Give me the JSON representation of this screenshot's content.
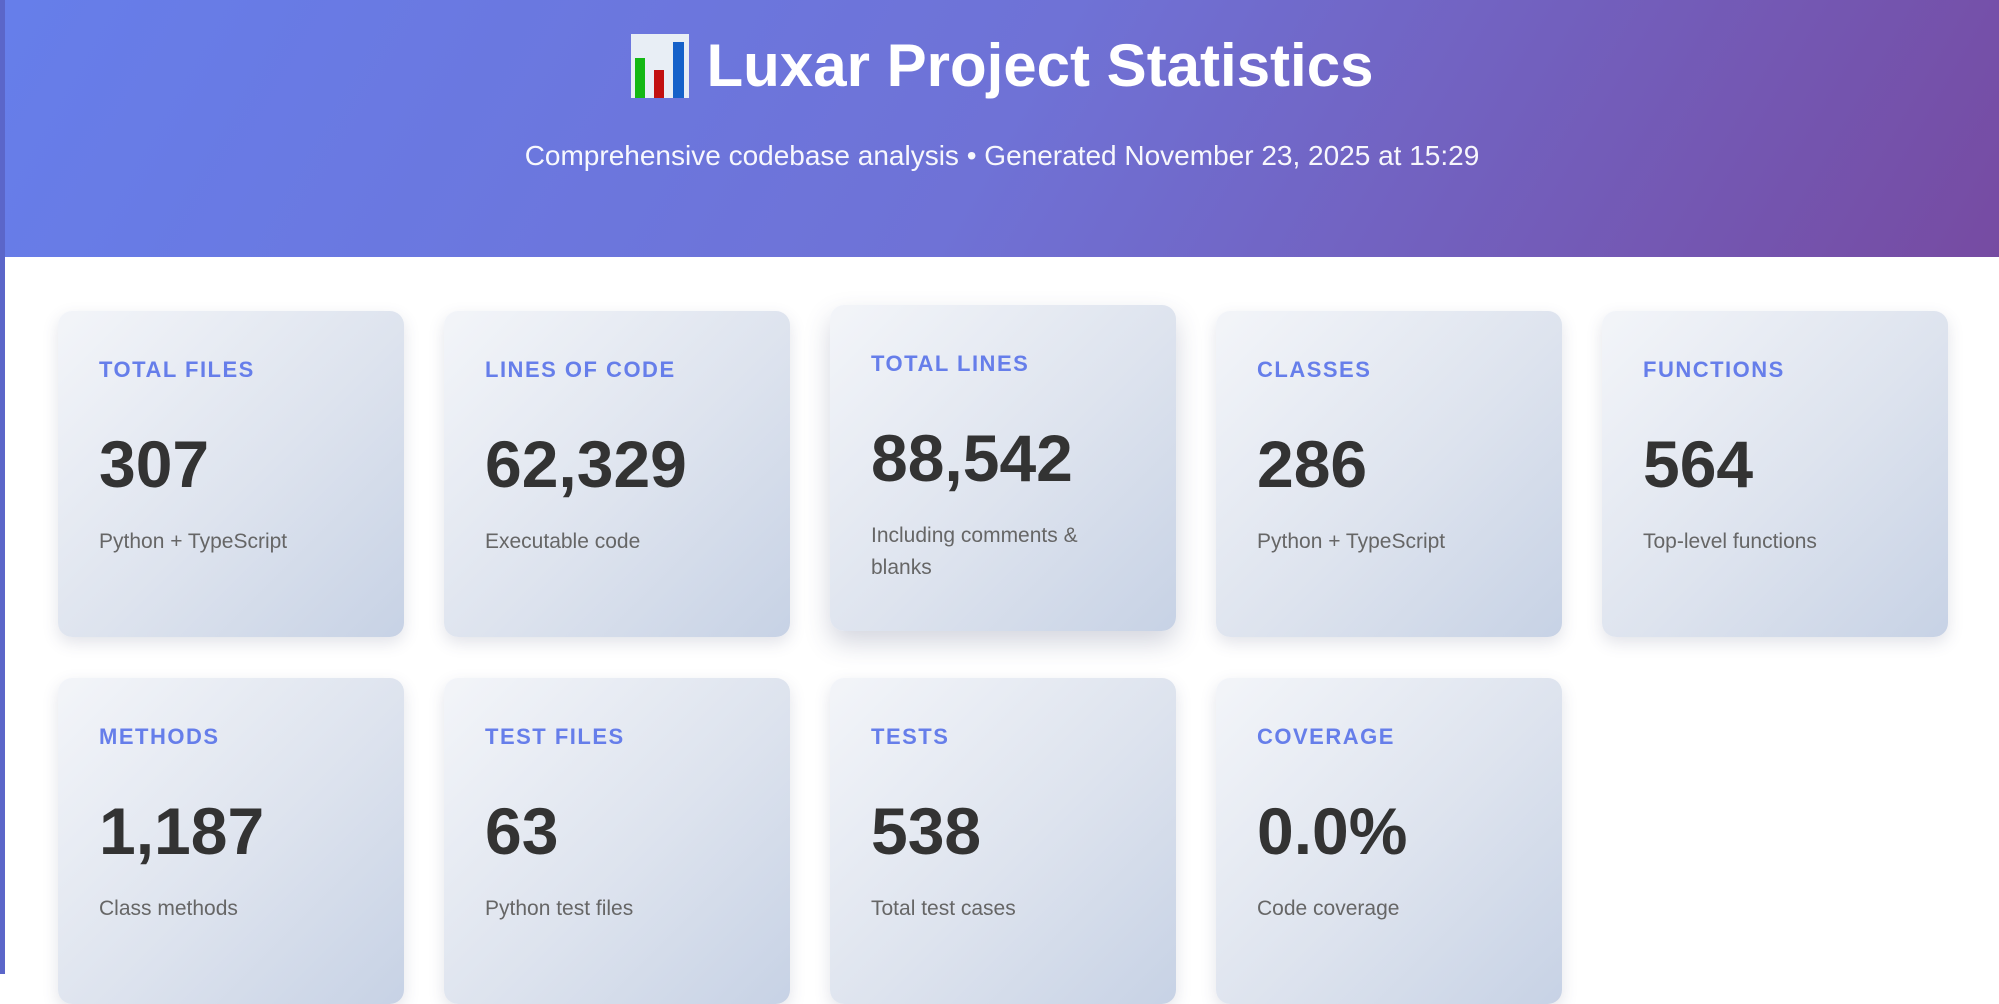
{
  "header": {
    "title": "Luxar Project Statistics",
    "subtitle": "Comprehensive codebase analysis • Generated November 23, 2025 at 15:29",
    "icon": "bar-chart-icon"
  },
  "colors": {
    "accent": "#667eea",
    "gradient_start": "#667eea",
    "gradient_end": "#764ba2",
    "value": "#333333"
  },
  "stats": [
    {
      "label": "Total Files",
      "value": "307",
      "desc": "Python + TypeScript"
    },
    {
      "label": "Lines of Code",
      "value": "62,329",
      "desc": "Executable code"
    },
    {
      "label": "Total Lines",
      "value": "88,542",
      "desc": "Including comments & blanks"
    },
    {
      "label": "Classes",
      "value": "286",
      "desc": "Python + TypeScript"
    },
    {
      "label": "Functions",
      "value": "564",
      "desc": "Top-level functions"
    },
    {
      "label": "Methods",
      "value": "1,187",
      "desc": "Class methods"
    },
    {
      "label": "Test Files",
      "value": "63",
      "desc": "Python test files"
    },
    {
      "label": "Tests",
      "value": "538",
      "desc": "Total test cases"
    },
    {
      "label": "Coverage",
      "value": "0.0%",
      "desc": "Code coverage"
    }
  ]
}
